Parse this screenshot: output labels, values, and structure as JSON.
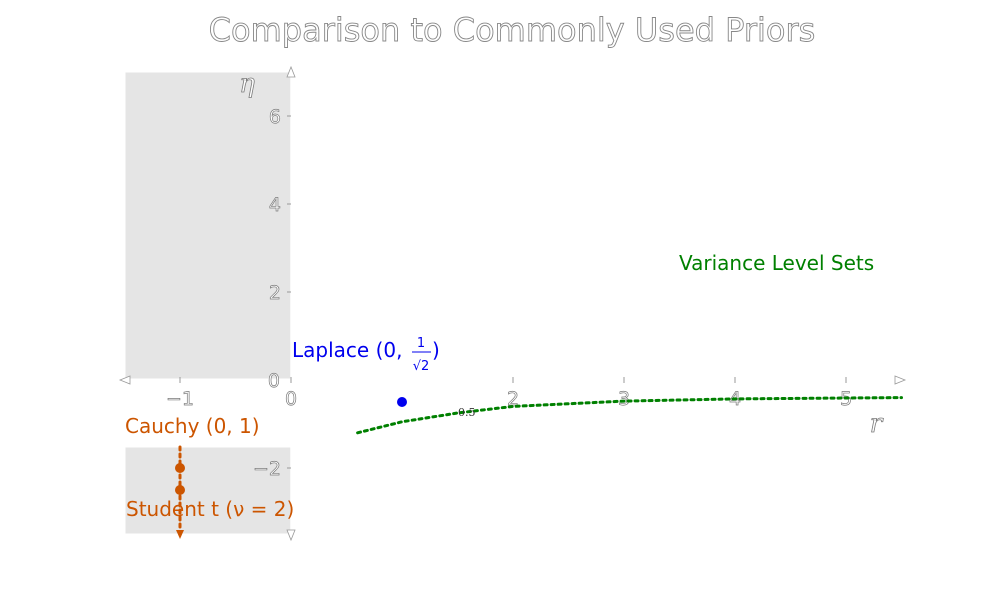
{
  "chart_data": {
    "type": "scatter",
    "title": "Comparison to Commonly Used Priors",
    "xlabel": "r",
    "ylabel": "η",
    "xlim": [
      -1.5,
      5.5
    ],
    "ylim": [
      -3.5,
      7.0
    ],
    "x_ticks": [
      -1,
      0,
      2,
      3,
      4,
      5
    ],
    "y_ticks": [
      -2,
      0,
      2,
      4,
      6
    ],
    "grid": false,
    "series": [
      {
        "name": "Laplace",
        "color": "#0000ee",
        "points": [
          {
            "x": 1.0,
            "y": -0.5
          }
        ]
      },
      {
        "name": "Cauchy",
        "color": "#cc5500",
        "points": [
          {
            "x": -1.0,
            "y": -2.0
          }
        ]
      },
      {
        "name": "Student t",
        "color": "#cc5500",
        "points": [
          {
            "x": -1.0,
            "y": -2.5
          }
        ]
      },
      {
        "name": "Variance Level Sets",
        "color": "#008000",
        "curve": [
          {
            "x": 0.6,
            "y": -1.2
          },
          {
            "x": 1.0,
            "y": -0.95
          },
          {
            "x": 1.5,
            "y": -0.75
          },
          {
            "x": 2.0,
            "y": -0.6
          },
          {
            "x": 3.0,
            "y": -0.48
          },
          {
            "x": 4.0,
            "y": -0.43
          },
          {
            "x": 5.0,
            "y": -0.41
          },
          {
            "x": 5.5,
            "y": -0.4
          }
        ]
      }
    ],
    "annotations": {
      "laplace": "Laplace (0,",
      "laplace_close": ")",
      "laplace_frac_num": "1",
      "laplace_frac_den": "√2",
      "cauchy": "Cauchy (0, 1)",
      "student": "Student t (ν = 2)",
      "level_sets": "Variance Level Sets",
      "level_value": "0.5"
    },
    "colors": {
      "laplace": "#0000ee",
      "heavy_tail": "#cc5500",
      "level_sets": "#008000",
      "panel": "#e5e5e5"
    }
  }
}
